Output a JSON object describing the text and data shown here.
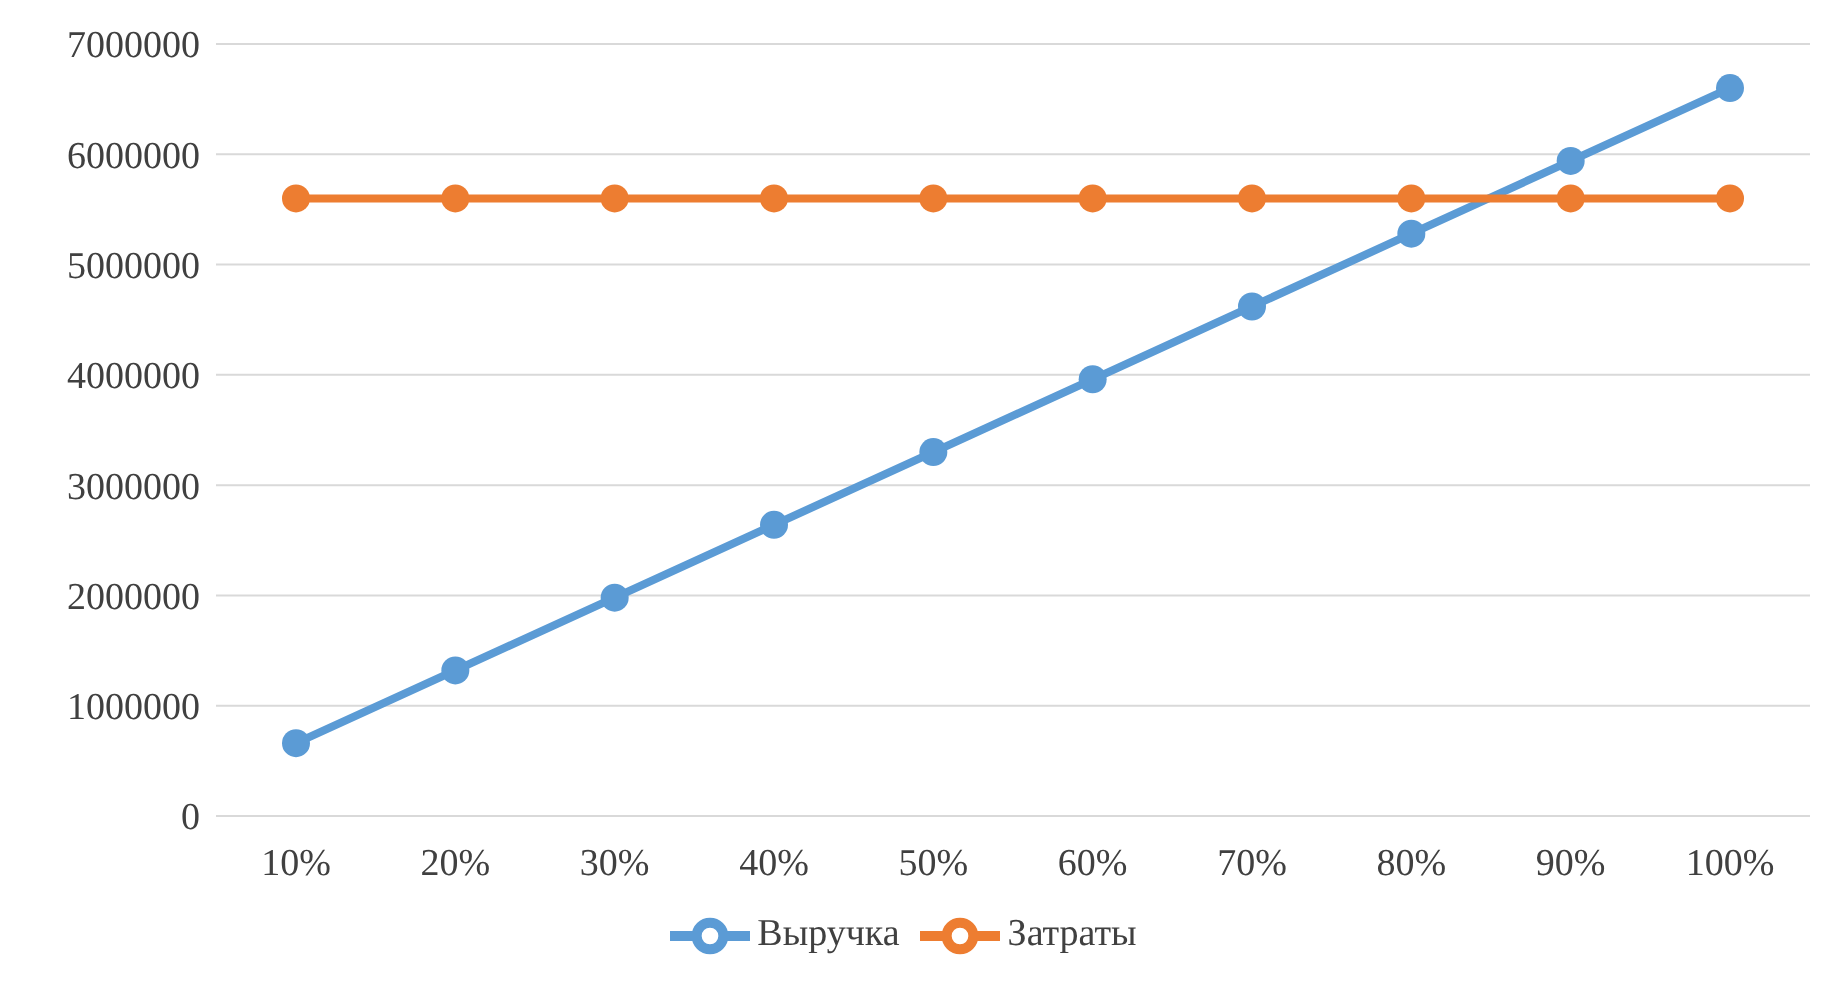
{
  "chart_data": {
    "type": "line",
    "categories": [
      "10%",
      "20%",
      "30%",
      "40%",
      "50%",
      "60%",
      "70%",
      "80%",
      "90%",
      "100%"
    ],
    "series": [
      {
        "name": "Выручка",
        "color": "#5b9bd5",
        "values": [
          660000,
          1320000,
          1980000,
          2640000,
          3300000,
          3960000,
          4620000,
          5280000,
          5940000,
          6600000
        ]
      },
      {
        "name": "Затраты",
        "color": "#ed7d31",
        "values": [
          5600000,
          5600000,
          5600000,
          5600000,
          5600000,
          5600000,
          5600000,
          5600000,
          5600000,
          5600000
        ]
      }
    ],
    "ylim": [
      0,
      7000000
    ],
    "yticks": [
      0,
      1000000,
      2000000,
      3000000,
      4000000,
      5000000,
      6000000,
      7000000
    ],
    "grid": "y",
    "legend": "bottom",
    "marker": "circle",
    "line_style": "solid"
  }
}
